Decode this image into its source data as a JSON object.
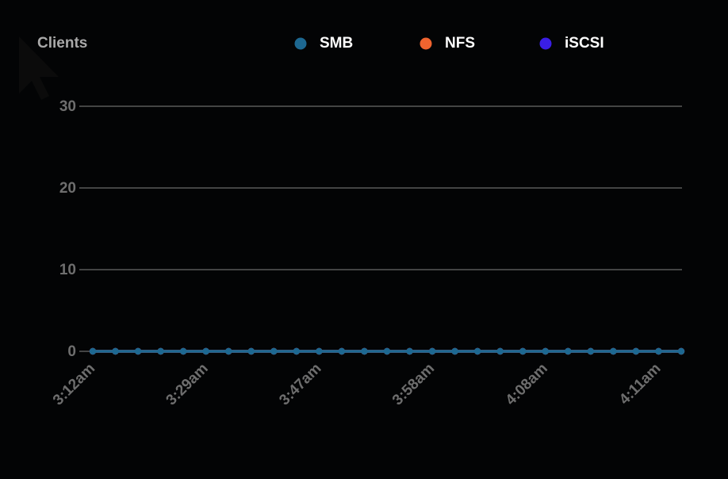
{
  "chart_data": {
    "type": "line",
    "title": "Clients",
    "categories": [
      "3:12am",
      null,
      null,
      null,
      null,
      "3:29am",
      null,
      null,
      null,
      null,
      "3:47am",
      null,
      null,
      null,
      null,
      "3:58am",
      null,
      null,
      null,
      null,
      "4:08am",
      null,
      null,
      null,
      null,
      "4:11am",
      null
    ],
    "series": [
      {
        "name": "SMB",
        "color": "#1d6891",
        "values": [
          0,
          0,
          0,
          0,
          0,
          0,
          0,
          0,
          0,
          0,
          0,
          0,
          0,
          0,
          0,
          0,
          0,
          0,
          0,
          0,
          0,
          0,
          0,
          0,
          0,
          0,
          0
        ]
      },
      {
        "name": "NFS",
        "color": "#f0642f",
        "values": [
          0,
          0,
          0,
          0,
          0,
          0,
          0,
          0,
          0,
          0,
          0,
          0,
          0,
          0,
          0,
          0,
          0,
          0,
          0,
          0,
          0,
          0,
          0,
          0,
          0,
          0,
          0
        ]
      },
      {
        "name": "iSCSI",
        "color": "#3a1ee6",
        "values": [
          0,
          0,
          0,
          0,
          0,
          0,
          0,
          0,
          0,
          0,
          0,
          0,
          0,
          0,
          0,
          0,
          0,
          0,
          0,
          0,
          0,
          0,
          0,
          0,
          0,
          0,
          0
        ]
      }
    ],
    "ylim": [
      0,
      30
    ],
    "yticks": [
      0,
      10,
      20,
      30
    ],
    "grid": true
  }
}
